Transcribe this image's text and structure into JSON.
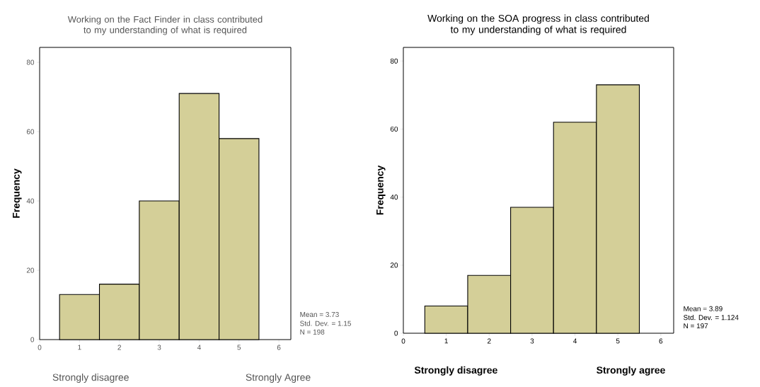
{
  "chart_data": [
    {
      "type": "histogram",
      "title": "Working on the Fact Finder in class contributed to my understanding of what is required",
      "ylabel": "Frequency",
      "bins": [
        0.5,
        1.5,
        2.5,
        3.5,
        4.5,
        5.5
      ],
      "values": [
        13,
        16,
        40,
        71,
        58
      ],
      "color": "#d4cf98",
      "xlim": [
        0,
        6.3
      ],
      "ylim": [
        0,
        84.3
      ],
      "xticks": [
        0,
        1,
        2,
        3,
        4,
        5,
        6
      ],
      "yticks": [
        0,
        20,
        40,
        60,
        80
      ],
      "annotations": [
        "Mean = 3.73",
        "Std. Dev. = 1.15",
        "N = 198",
        "Strongly disagree",
        "Strongly Agree"
      ]
    },
    {
      "type": "histogram",
      "title": "Working on the SOA progress in class contributed to my understanding of what is required",
      "ylabel": "Frequency",
      "bins": [
        0.5,
        1.5,
        2.5,
        3.5,
        4.5,
        5.5
      ],
      "values": [
        8,
        17,
        37,
        62,
        73
      ],
      "color": "#d4cf98",
      "xlim": [
        0,
        6.3
      ],
      "ylim": [
        0,
        84
      ],
      "xticks": [
        0,
        1,
        2,
        3,
        4,
        5,
        6
      ],
      "yticks": [
        0,
        20,
        40,
        60,
        80
      ],
      "annotations": [
        "Mean = 3.89",
        "Std. Dev. = 1.124",
        "N = 197",
        "Strongly disagree",
        "Strongly agree"
      ]
    }
  ]
}
